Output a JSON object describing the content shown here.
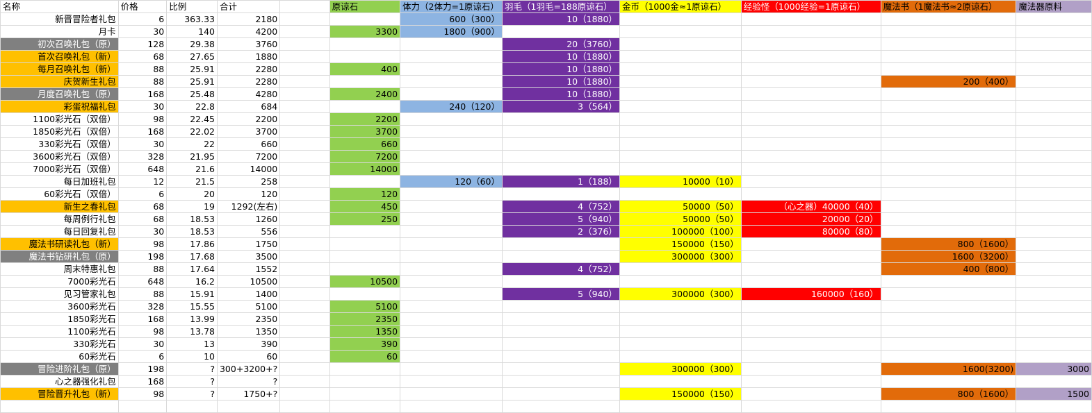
{
  "headers": [
    "名称",
    "价格",
    "比例",
    "合计",
    "",
    "原谅石",
    "体力（2体力=1原谅石）",
    "羽毛（1羽毛=188原谅石）",
    "金币（1000金≈1原谅石）",
    "经验怪（1000经验=1原谅石）",
    "魔法书（1魔法书≈2原谅石）",
    "魔法器原料"
  ],
  "rows": [
    {
      "name": "新晋冒险者礼包",
      "price": "6",
      "ratio": "363.33",
      "total": "2180",
      "stone": "",
      "stamina": "600（300）",
      "feather": "10（1880）",
      "gold": "",
      "exp": "",
      "book": "",
      "mat": ""
    },
    {
      "name": "月卡",
      "price": "30",
      "ratio": "140",
      "total": "4200",
      "stone": "3300",
      "stamina": "1800（900）",
      "feather": "",
      "gold": "",
      "exp": "",
      "book": "",
      "mat": ""
    },
    {
      "name": "初次召唤礼包（原）",
      "price": "128",
      "ratio": "29.38",
      "total": "3760",
      "stone": "",
      "stamina": "",
      "feather": "20（3760）",
      "gold": "",
      "exp": "",
      "book": "",
      "mat": ""
    },
    {
      "name": "首次召唤礼包（新）",
      "price": "68",
      "ratio": "27.65",
      "total": "1880",
      "stone": "",
      "stamina": "",
      "feather": "10（1880）",
      "gold": "",
      "exp": "",
      "book": "",
      "mat": ""
    },
    {
      "name": "每月召唤礼包（新）",
      "price": "88",
      "ratio": "25.91",
      "total": "2280",
      "stone": "400",
      "stamina": "",
      "feather": "10（1880）",
      "gold": "",
      "exp": "",
      "book": "",
      "mat": ""
    },
    {
      "name": "庆贺新生礼包",
      "price": "88",
      "ratio": "25.91",
      "total": "2280",
      "stone": "",
      "stamina": "",
      "feather": "10（1880）",
      "gold": "",
      "exp": "",
      "book": "200（400）",
      "mat": ""
    },
    {
      "name": "月度召唤礼包（原）",
      "price": "168",
      "ratio": "25.48",
      "total": "4280",
      "stone": "2400",
      "stamina": "",
      "feather": "10（1880）",
      "gold": "",
      "exp": "",
      "book": "",
      "mat": ""
    },
    {
      "name": "彩蛋祝福礼包",
      "price": "30",
      "ratio": "22.8",
      "total": "684",
      "stone": "",
      "stamina": "240（120）",
      "feather": "3（564）",
      "gold": "",
      "exp": "",
      "book": "",
      "mat": ""
    },
    {
      "name": "1100彩光石（双倍）",
      "price": "98",
      "ratio": "22.45",
      "total": "2200",
      "stone": "2200",
      "stamina": "",
      "feather": "",
      "gold": "",
      "exp": "",
      "book": "",
      "mat": ""
    },
    {
      "name": "1850彩光石（双倍）",
      "price": "168",
      "ratio": "22.02",
      "total": "3700",
      "stone": "3700",
      "stamina": "",
      "feather": "",
      "gold": "",
      "exp": "",
      "book": "",
      "mat": ""
    },
    {
      "name": "330彩光石（双倍）",
      "price": "30",
      "ratio": "22",
      "total": "660",
      "stone": "660",
      "stamina": "",
      "feather": "",
      "gold": "",
      "exp": "",
      "book": "",
      "mat": ""
    },
    {
      "name": "3600彩光石（双倍）",
      "price": "328",
      "ratio": "21.95",
      "total": "7200",
      "stone": "7200",
      "stamina": "",
      "feather": "",
      "gold": "",
      "exp": "",
      "book": "",
      "mat": ""
    },
    {
      "name": "7000彩光石（双倍）",
      "price": "648",
      "ratio": "21.6",
      "total": "14000",
      "stone": "14000",
      "stamina": "",
      "feather": "",
      "gold": "",
      "exp": "",
      "book": "",
      "mat": ""
    },
    {
      "name": "每日加班礼包",
      "price": "12",
      "ratio": "21.5",
      "total": "258",
      "stone": "",
      "stamina": "120（60）",
      "feather": "1（188）",
      "gold": "10000（10）",
      "exp": "",
      "book": "",
      "mat": ""
    },
    {
      "name": "60彩光石（双倍）",
      "price": "6",
      "ratio": "20",
      "total": "120",
      "stone": "120",
      "stamina": "",
      "feather": "",
      "gold": "",
      "exp": "",
      "book": "",
      "mat": ""
    },
    {
      "name": "新生之春礼包",
      "price": "68",
      "ratio": "19",
      "total": "1292(左右)",
      "stone": "450",
      "stamina": "",
      "feather": "4（752）",
      "gold": "50000（50）",
      "exp": "（心之器）40000（40）",
      "book": "",
      "mat": ""
    },
    {
      "name": "每周例行礼包",
      "price": "68",
      "ratio": "18.53",
      "total": "1260",
      "stone": "250",
      "stamina": "",
      "feather": "5（940）",
      "gold": "50000（50）",
      "exp": "20000（20）",
      "book": "",
      "mat": ""
    },
    {
      "name": "每日回复礼包",
      "price": "30",
      "ratio": "18.53",
      "total": "556",
      "stone": "",
      "stamina": "",
      "feather": "2（376）",
      "gold": "100000（100）",
      "exp": "80000（80）",
      "book": "",
      "mat": ""
    },
    {
      "name": "魔法书研读礼包（新）",
      "price": "98",
      "ratio": "17.86",
      "total": "1750",
      "stone": "",
      "stamina": "",
      "feather": "",
      "gold": "150000（150）",
      "exp": "",
      "book": "800（1600）",
      "mat": ""
    },
    {
      "name": "魔法书钻研礼包（原）",
      "price": "198",
      "ratio": "17.68",
      "total": "3500",
      "stone": "",
      "stamina": "",
      "feather": "",
      "gold": "300000（300）",
      "exp": "",
      "book": "1600（3200）",
      "mat": ""
    },
    {
      "name": "周末特惠礼包",
      "price": "88",
      "ratio": "17.64",
      "total": "1552",
      "stone": "",
      "stamina": "",
      "feather": "4（752）",
      "gold": "",
      "exp": "",
      "book": "400（800）",
      "mat": ""
    },
    {
      "name": "7000彩光石",
      "price": "648",
      "ratio": "16.2",
      "total": "10500",
      "stone": "10500",
      "stamina": "",
      "feather": "",
      "gold": "",
      "exp": "",
      "book": "",
      "mat": ""
    },
    {
      "name": "见习管家礼包",
      "price": "88",
      "ratio": "15.91",
      "total": "1400",
      "stone": "",
      "stamina": "",
      "feather": "5（940）",
      "gold": "300000（300）",
      "exp": "160000（160）",
      "book": "",
      "mat": ""
    },
    {
      "name": "3600彩光石",
      "price": "328",
      "ratio": "15.55",
      "total": "5100",
      "stone": "5100",
      "stamina": "",
      "feather": "",
      "gold": "",
      "exp": "",
      "book": "",
      "mat": ""
    },
    {
      "name": "1850彩光石",
      "price": "168",
      "ratio": "13.99",
      "total": "2350",
      "stone": "2350",
      "stamina": "",
      "feather": "",
      "gold": "",
      "exp": "",
      "book": "",
      "mat": ""
    },
    {
      "name": "1100彩光石",
      "price": "98",
      "ratio": "13.78",
      "total": "1350",
      "stone": "1350",
      "stamina": "",
      "feather": "",
      "gold": "",
      "exp": "",
      "book": "",
      "mat": ""
    },
    {
      "name": "330彩光石",
      "price": "30",
      "ratio": "13",
      "total": "390",
      "stone": "390",
      "stamina": "",
      "feather": "",
      "gold": "",
      "exp": "",
      "book": "",
      "mat": ""
    },
    {
      "name": "60彩光石",
      "price": "6",
      "ratio": "10",
      "total": "60",
      "stone": "60",
      "stamina": "",
      "feather": "",
      "gold": "",
      "exp": "",
      "book": "",
      "mat": ""
    },
    {
      "name": "冒险进阶礼包（原）",
      "price": "198",
      "ratio": "?",
      "total": "300+3200+?",
      "stone": "",
      "stamina": "",
      "feather": "",
      "gold": "300000（300）",
      "exp": "",
      "book": "1600(3200)",
      "mat": "3000"
    },
    {
      "name": "心之器强化礼包",
      "price": "168",
      "ratio": "?",
      "total": "?",
      "stone": "",
      "stamina": "",
      "feather": "",
      "gold": "",
      "exp": "",
      "book": "",
      "mat": ""
    },
    {
      "name": "冒险晋升礼包（新）",
      "price": "98",
      "ratio": "?",
      "total": "1750+?",
      "stone": "",
      "stamina": "",
      "feather": "",
      "gold": "150000（150）",
      "exp": "",
      "book": "800（1600）",
      "mat": "1500"
    },
    {
      "name": "",
      "price": "",
      "ratio": "",
      "total": "",
      "stone": "",
      "stamina": "",
      "feather": "",
      "gold": "",
      "exp": "",
      "book": "",
      "mat": ""
    }
  ],
  "colors": {
    "stone_fill": "#92d050",
    "stamina_fill": "#8db4e2",
    "feather_fill": "#7030a0",
    "gold_fill": "#ffff00",
    "exp_fill": "#ff0000",
    "book_fill": "#e26b0a",
    "material_fill": "#b1a0c7",
    "old_pack_fill": "#808080",
    "new_pack_fill": "#ffc000"
  }
}
